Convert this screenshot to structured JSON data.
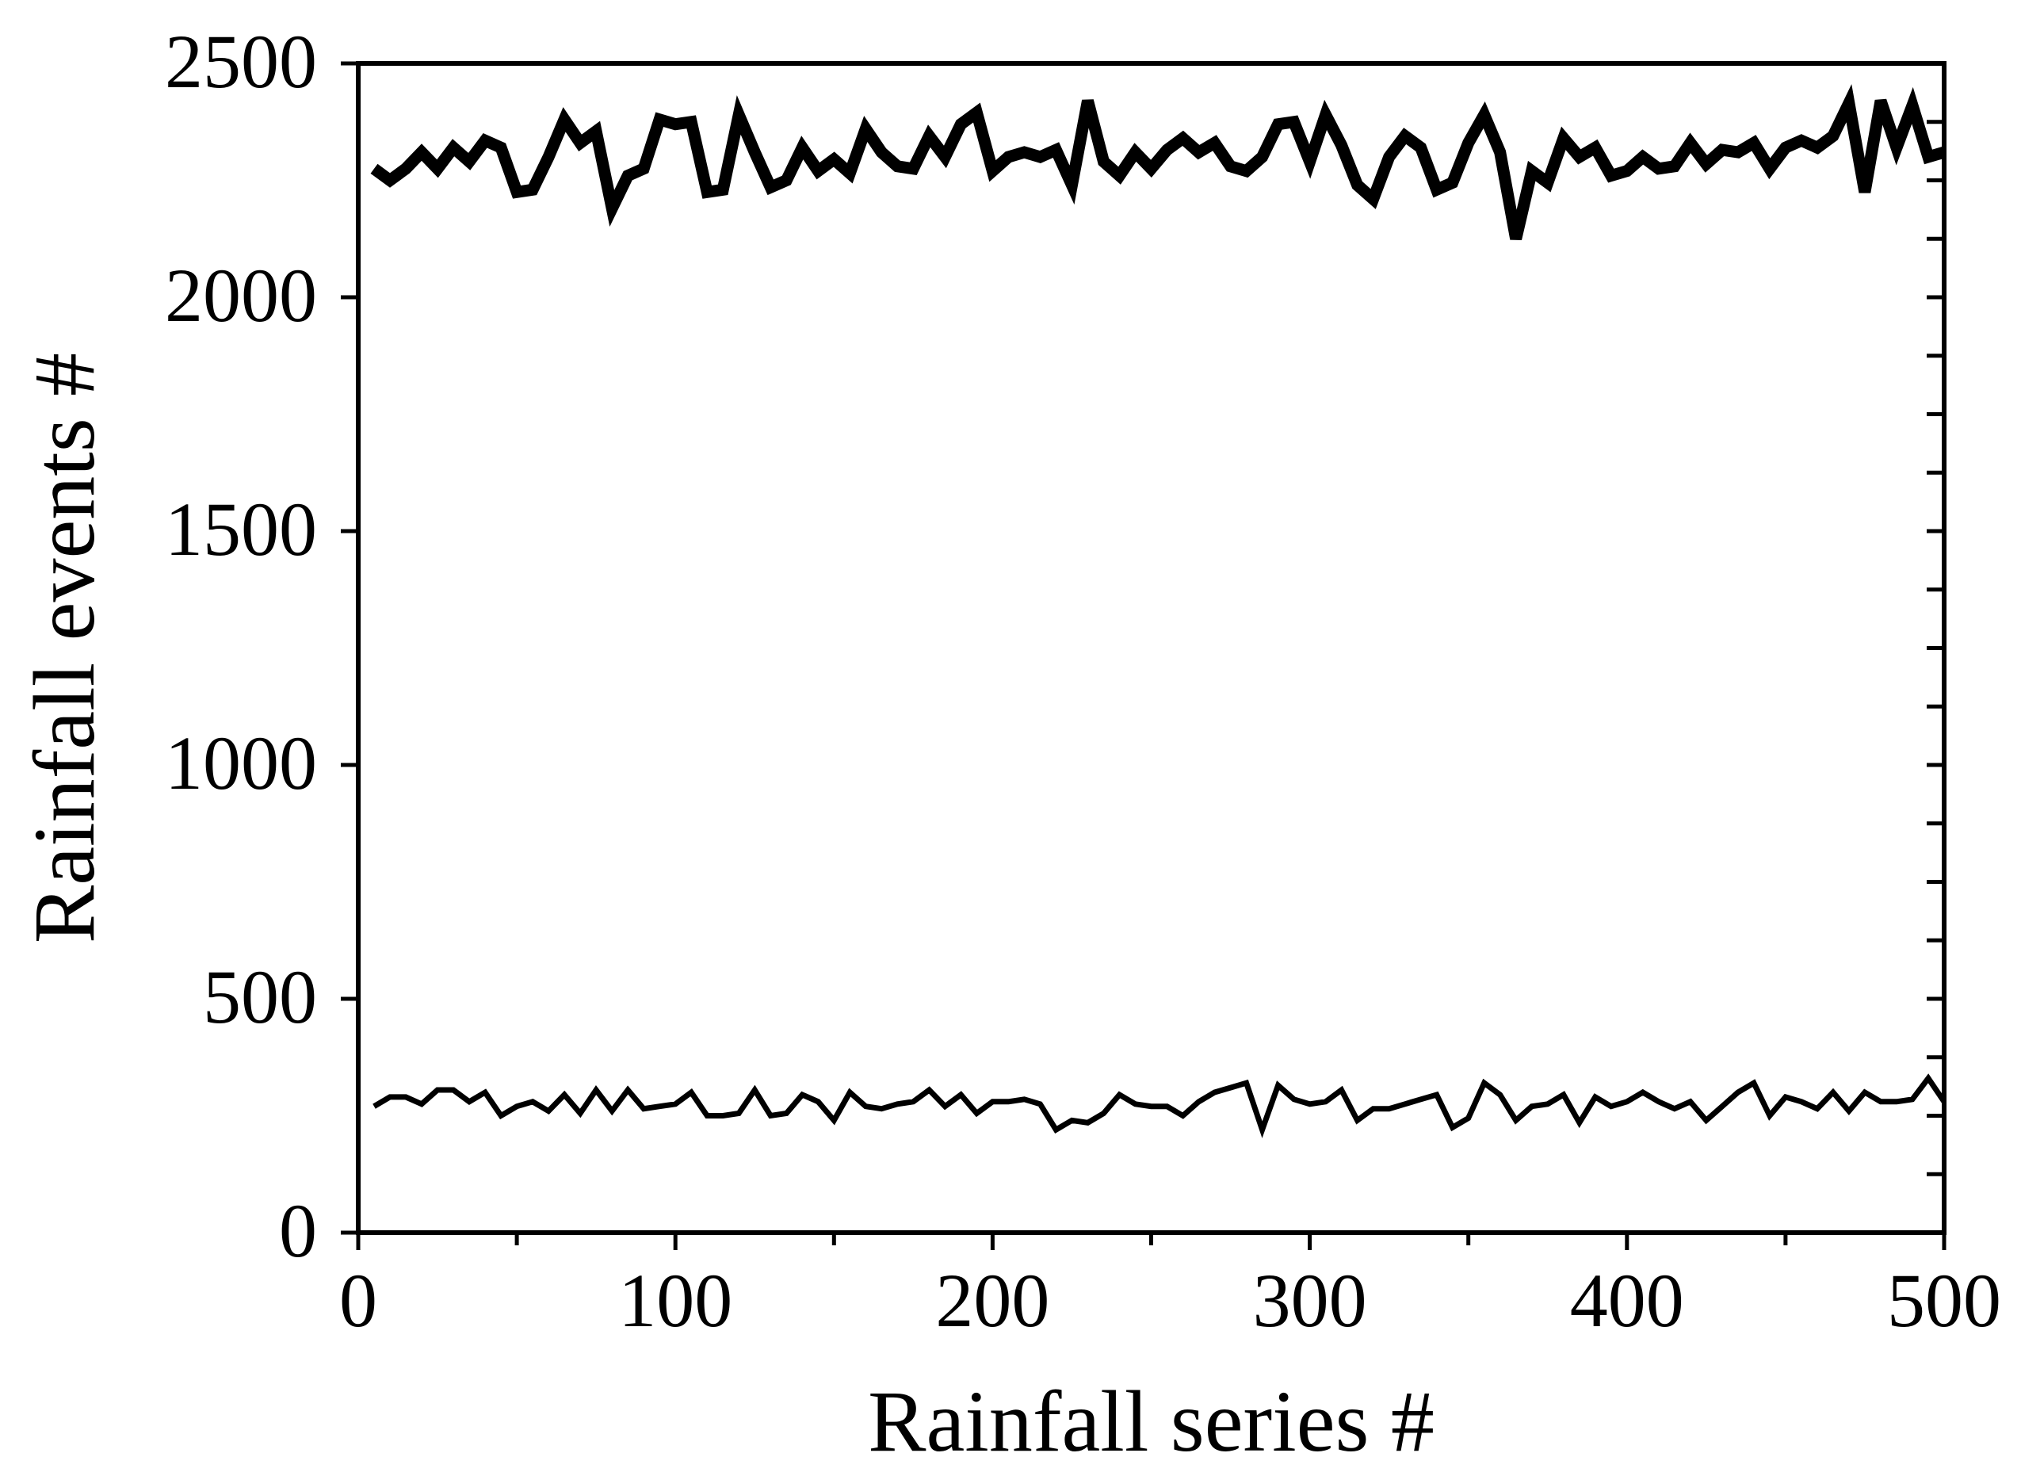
{
  "chart_data": {
    "type": "line",
    "title": "",
    "xlabel": "Rainfall series #",
    "ylabel": "Rainfall events #",
    "xlim": [
      0,
      500
    ],
    "ylim": [
      0,
      2500
    ],
    "xticks": [
      0,
      100,
      200,
      300,
      400,
      500
    ],
    "xtick_labels": [
      "0",
      "100",
      "200",
      "300",
      "400",
      "500"
    ],
    "yticks": [
      0,
      500,
      1000,
      1500,
      2000,
      2500
    ],
    "ytick_labels": [
      "0",
      "500",
      "1000",
      "1500",
      "2000",
      "2500"
    ],
    "grid": false,
    "legend": "none",
    "x": [
      5,
      10,
      15,
      20,
      25,
      30,
      35,
      40,
      45,
      50,
      55,
      60,
      65,
      70,
      75,
      80,
      85,
      90,
      95,
      100,
      105,
      110,
      115,
      120,
      125,
      130,
      135,
      140,
      145,
      150,
      155,
      160,
      165,
      170,
      175,
      180,
      185,
      190,
      195,
      200,
      205,
      210,
      215,
      220,
      225,
      230,
      235,
      240,
      245,
      250,
      255,
      260,
      265,
      270,
      275,
      280,
      285,
      290,
      295,
      300,
      305,
      310,
      315,
      320,
      325,
      330,
      335,
      340,
      345,
      350,
      355,
      360,
      365,
      370,
      375,
      380,
      385,
      390,
      395,
      400,
      405,
      410,
      415,
      420,
      425,
      430,
      435,
      440,
      445,
      450,
      455,
      460,
      465,
      470,
      475,
      480,
      485,
      490,
      495,
      500
    ],
    "series": [
      {
        "name": "",
        "line_width": "thick",
        "color": "#000000",
        "values": [
          2275,
          2250,
          2275,
          2310,
          2275,
          2320,
          2290,
          2335,
          2320,
          2225,
          2230,
          2300,
          2380,
          2330,
          2355,
          2190,
          2260,
          2275,
          2380,
          2370,
          2375,
          2225,
          2230,
          2390,
          2310,
          2235,
          2250,
          2320,
          2270,
          2295,
          2265,
          2360,
          2310,
          2280,
          2275,
          2345,
          2300,
          2370,
          2395,
          2270,
          2300,
          2310,
          2300,
          2315,
          2240,
          2420,
          2290,
          2260,
          2310,
          2275,
          2315,
          2340,
          2310,
          2330,
          2280,
          2270,
          2300,
          2370,
          2375,
          2290,
          2390,
          2325,
          2240,
          2210,
          2300,
          2345,
          2320,
          2230,
          2245,
          2330,
          2390,
          2310,
          2125,
          2270,
          2245,
          2340,
          2300,
          2320,
          2260,
          2270,
          2300,
          2275,
          2280,
          2330,
          2285,
          2315,
          2310,
          2330,
          2275,
          2320,
          2335,
          2320,
          2345,
          2415,
          2225,
          2420,
          2320,
          2410,
          2300,
          2310
        ]
      },
      {
        "name": "",
        "line_width": "thin",
        "color": "#000000",
        "values": [
          270,
          290,
          290,
          275,
          305,
          305,
          280,
          300,
          250,
          270,
          280,
          260,
          295,
          255,
          305,
          260,
          305,
          265,
          270,
          275,
          300,
          250,
          250,
          255,
          305,
          250,
          255,
          295,
          280,
          240,
          300,
          270,
          265,
          275,
          280,
          305,
          270,
          295,
          255,
          280,
          280,
          285,
          275,
          220,
          240,
          235,
          255,
          295,
          275,
          270,
          270,
          250,
          280,
          300,
          310,
          320,
          220,
          315,
          285,
          275,
          280,
          305,
          240,
          265,
          265,
          275,
          285,
          295,
          225,
          245,
          320,
          295,
          240,
          270,
          275,
          295,
          235,
          290,
          270,
          280,
          300,
          280,
          265,
          280,
          240,
          270,
          300,
          320,
          250,
          290,
          280,
          265,
          300,
          260,
          300,
          280,
          280,
          285,
          330,
          280
        ]
      }
    ]
  }
}
